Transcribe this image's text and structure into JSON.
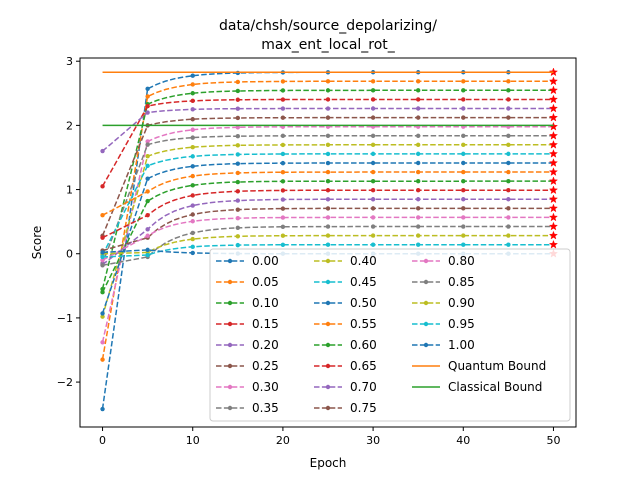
{
  "chart_data": {
    "type": "line",
    "title": "data/chsh/source_depolarizing/\nmax_ent_local_rot_",
    "xlabel": "Epoch",
    "ylabel": "Score",
    "xlim": [
      -2.5,
      52.5
    ],
    "ylim": [
      -2.7,
      3.05
    ],
    "x_ticks": [
      0,
      10,
      20,
      30,
      40,
      50
    ],
    "y_ticks": [
      -2,
      -1,
      0,
      1,
      2,
      3
    ],
    "x": [
      0,
      1,
      2,
      3,
      4,
      5,
      6,
      7,
      8,
      9,
      10,
      11,
      12,
      13,
      14,
      15,
      16,
      17,
      18,
      19,
      20,
      21,
      22,
      23,
      24,
      25,
      26,
      27,
      28,
      29,
      30,
      31,
      32,
      33,
      34,
      35,
      36,
      37,
      38,
      39,
      40,
      41,
      42,
      43,
      44,
      45,
      46,
      47,
      48,
      49,
      50
    ],
    "grid": false,
    "legend_position": "lower-right",
    "legend_columns": 3,
    "series": [
      {
        "name": "0.00",
        "color": "#1f77b4",
        "start": -2.42,
        "mid": 2.57,
        "plateau": 2.828
      },
      {
        "name": "0.05",
        "color": "#ff7f0e",
        "start": -1.65,
        "mid": 2.45,
        "plateau": 2.687
      },
      {
        "name": "0.10",
        "color": "#2ca02c",
        "start": -0.55,
        "mid": 2.33,
        "plateau": 2.546
      },
      {
        "name": "0.15",
        "color": "#d62728",
        "start": 1.05,
        "mid": 2.3,
        "plateau": 2.404
      },
      {
        "name": "0.20",
        "color": "#9467bd",
        "start": 1.6,
        "mid": 2.2,
        "plateau": 2.263
      },
      {
        "name": "0.25",
        "color": "#8c564b",
        "start": 0.28,
        "mid": 2.0,
        "plateau": 2.121
      },
      {
        "name": "0.30",
        "color": "#e377c2",
        "start": -1.38,
        "mid": 1.75,
        "plateau": 1.98
      },
      {
        "name": "0.35",
        "color": "#7f7f7f",
        "start": -0.15,
        "mid": 1.7,
        "plateau": 1.838
      },
      {
        "name": "0.40",
        "color": "#bcbd22",
        "start": -0.98,
        "mid": 1.52,
        "plateau": 1.697
      },
      {
        "name": "0.45",
        "color": "#17becf",
        "start": -0.02,
        "mid": 1.37,
        "plateau": 1.556
      },
      {
        "name": "0.50",
        "color": "#1f77b4",
        "start": -0.93,
        "mid": 1.17,
        "plateau": 1.414
      },
      {
        "name": "0.55",
        "color": "#ff7f0e",
        "start": 0.6,
        "mid": 0.97,
        "plateau": 1.273
      },
      {
        "name": "0.60",
        "color": "#2ca02c",
        "start": -0.6,
        "mid": 0.82,
        "plateau": 1.131
      },
      {
        "name": "0.65",
        "color": "#d62728",
        "start": 0.25,
        "mid": 0.6,
        "plateau": 0.99
      },
      {
        "name": "0.70",
        "color": "#9467bd",
        "start": -0.17,
        "mid": 0.38,
        "plateau": 0.849
      },
      {
        "name": "0.75",
        "color": "#8c564b",
        "start": 0.05,
        "mid": 0.25,
        "plateau": 0.707
      },
      {
        "name": "0.80",
        "color": "#e377c2",
        "start": -0.1,
        "mid": 0.28,
        "plateau": 0.566
      },
      {
        "name": "0.85",
        "color": "#7f7f7f",
        "start": -0.18,
        "mid": -0.05,
        "plateau": 0.424
      },
      {
        "name": "0.90",
        "color": "#bcbd22",
        "start": 0.0,
        "mid": 0.02,
        "plateau": 0.283
      },
      {
        "name": "0.95",
        "color": "#17becf",
        "start": -0.05,
        "mid": -0.02,
        "plateau": 0.141
      },
      {
        "name": "1.00",
        "color": "#1f77b4",
        "start": 0.02,
        "mid": 0.06,
        "plateau": 0.0
      }
    ],
    "bounds": [
      {
        "name": "Quantum Bound",
        "color": "#ff7f0e",
        "value": 2.828
      },
      {
        "name": "Classical Bound",
        "color": "#2ca02c",
        "value": 2.0
      }
    ]
  }
}
